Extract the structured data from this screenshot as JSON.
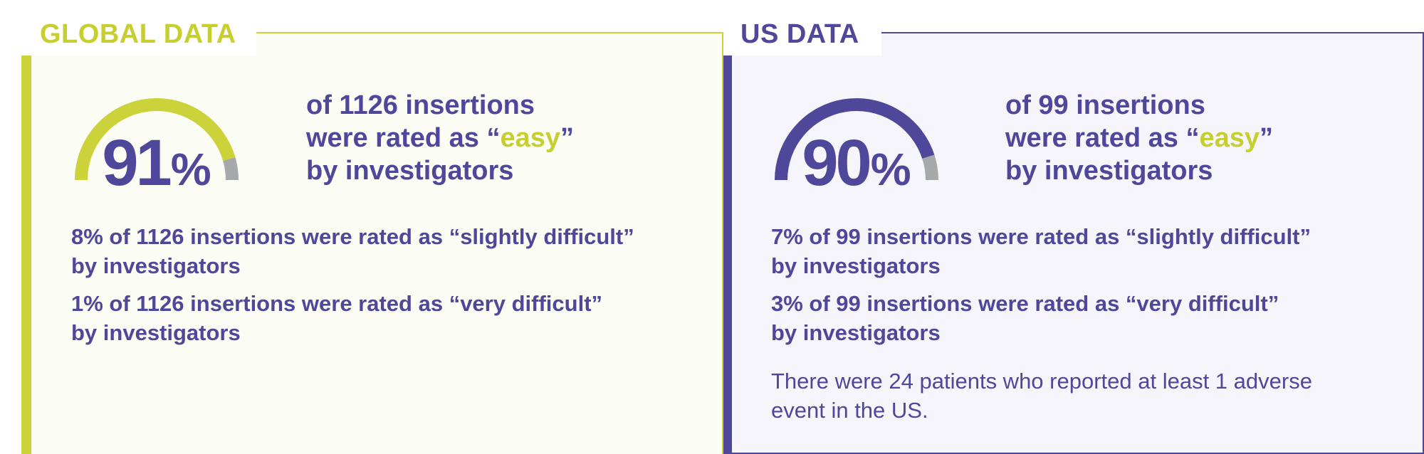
{
  "global": {
    "tab_label": "GLOBAL DATA",
    "gauge": {
      "value": "91",
      "unit": "%",
      "fraction": 0.91,
      "fill_color": "#cbd23a",
      "rest_color": "#a7a8aa"
    },
    "headline": {
      "line1": "of 1126 insertions",
      "line2_prefix": "were rated as “",
      "easy_word": "easy",
      "line2_suffix": "”",
      "line3": "by investigators"
    },
    "stats": [
      {
        "line1": "8% of 1126 insertions were rated as “slightly difficult”",
        "line2": "by investigators"
      },
      {
        "line1": "1% of 1126 insertions were rated as “very difficult”",
        "line2": "by investigators"
      }
    ]
  },
  "us": {
    "tab_label": "US DATA",
    "gauge": {
      "value": "90",
      "unit": "%",
      "fraction": 0.9,
      "fill_color": "#4f479a",
      "rest_color": "#a7a8aa"
    },
    "headline": {
      "line1": "of 99 insertions",
      "line2_prefix": "were rated as “",
      "easy_word": "easy",
      "line2_suffix": "”",
      "line3": "by investigators"
    },
    "stats": [
      {
        "line1": "7% of 99 insertions were rated as “slightly difficult”",
        "line2": "by investigators"
      },
      {
        "line1": "3% of 99 insertions were rated as “very difficult”",
        "line2": "by investigators"
      }
    ],
    "note": {
      "line1": "There were 24 patients who reported at least 1 adverse",
      "line2": "event in the US."
    }
  },
  "colors": {
    "lime": "#cbd23a",
    "purple": "#4f479a",
    "gray": "#a7a8aa"
  }
}
